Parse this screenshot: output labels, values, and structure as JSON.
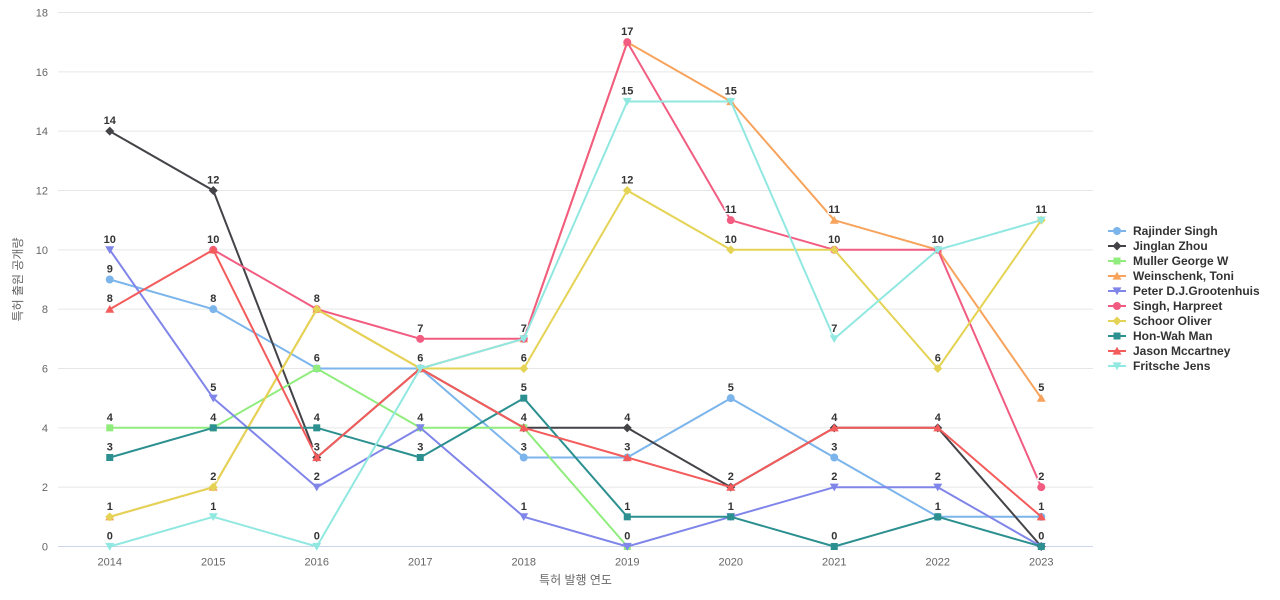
{
  "chart_data": {
    "type": "line",
    "title": "",
    "xlabel": "특허 발행 연도",
    "ylabel": "특허 출원 공개량",
    "categories": [
      "2014",
      "2015",
      "2016",
      "2017",
      "2018",
      "2019",
      "2020",
      "2021",
      "2022",
      "2023"
    ],
    "ylim": [
      0,
      18
    ],
    "ytick_step": 2,
    "yticks": [
      "0",
      "2",
      "4",
      "6",
      "8",
      "10",
      "12",
      "14",
      "16",
      "18"
    ],
    "grid": true,
    "data_labels": true,
    "legend_position": "right",
    "style": {
      "grid_color": "#e6e6e6",
      "axis_line_color": "#ccd6eb",
      "tick_label_color": "#666666",
      "axis_title_color": "#666666",
      "data_label_color": "#333333",
      "data_label_halo": "#ffffff",
      "legend_text_color": "#333333",
      "background": "#ffffff"
    },
    "series": [
      {
        "name": "Rajinder Singh",
        "color": "#7cb5ec",
        "marker": "circle",
        "values": [
          9,
          8,
          6,
          6,
          3,
          3,
          5,
          3,
          1,
          1
        ]
      },
      {
        "name": "Jinglan Zhou",
        "color": "#434348",
        "marker": "diamond",
        "values": [
          14,
          12,
          3,
          6,
          4,
          4,
          2,
          4,
          4,
          0
        ]
      },
      {
        "name": "Muller George W",
        "color": "#90ed7d",
        "marker": "square",
        "values": [
          4,
          4,
          6,
          4,
          4,
          0,
          null,
          null,
          null,
          null
        ]
      },
      {
        "name": "Weinschenk, Toni",
        "color": "#f7a35c",
        "marker": "triangle",
        "values": [
          1,
          2,
          8,
          6,
          7,
          17,
          15,
          11,
          10,
          5
        ]
      },
      {
        "name": "Peter D.J.Grootenhuis",
        "color": "#8085e9",
        "marker": "triangle-down",
        "values": [
          10,
          5,
          2,
          4,
          1,
          0,
          1,
          2,
          2,
          0
        ]
      },
      {
        "name": "Singh, Harpreet",
        "color": "#f15c80",
        "marker": "circle",
        "values": [
          null,
          10,
          8,
          7,
          7,
          17,
          11,
          10,
          10,
          2
        ]
      },
      {
        "name": "Schoor Oliver",
        "color": "#e4d354",
        "marker": "diamond",
        "values": [
          1,
          2,
          8,
          6,
          6,
          12,
          10,
          10,
          6,
          11
        ]
      },
      {
        "name": "Hon-Wah Man",
        "color": "#2b908f",
        "marker": "square",
        "values": [
          3,
          4,
          4,
          3,
          5,
          1,
          1,
          0,
          1,
          0
        ]
      },
      {
        "name": "Jason Mccartney",
        "color": "#f45b5b",
        "marker": "triangle",
        "values": [
          8,
          10,
          3,
          6,
          4,
          3,
          2,
          4,
          4,
          1
        ]
      },
      {
        "name": "Fritsche Jens",
        "color": "#91e8e1",
        "marker": "triangle-down",
        "values": [
          0,
          1,
          0,
          6,
          7,
          15,
          15,
          7,
          10,
          11
        ]
      }
    ]
  }
}
